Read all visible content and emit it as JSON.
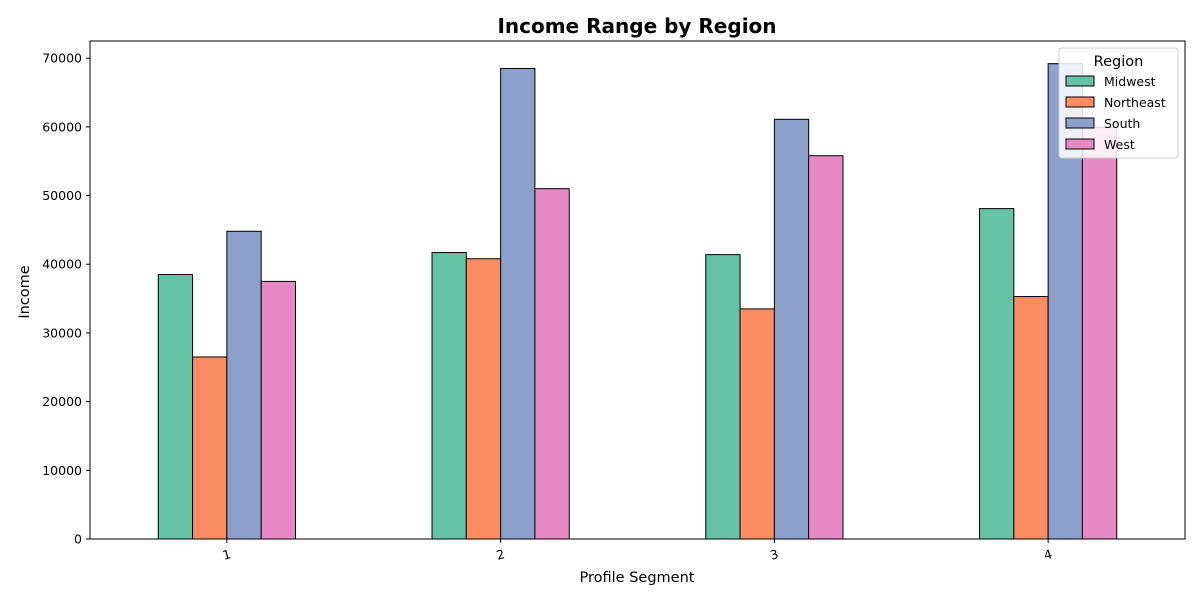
{
  "chart_data": {
    "type": "bar",
    "title": "Income Range by Region",
    "xlabel": "Profile Segment",
    "ylabel": "Income",
    "categories": [
      "1",
      "2",
      "3",
      "4"
    ],
    "ylim": [
      0,
      72500
    ],
    "yticks": [
      0,
      10000,
      20000,
      30000,
      40000,
      50000,
      60000,
      70000
    ],
    "grid": false,
    "legend": {
      "title": "Region",
      "placement": "top-right"
    },
    "series": [
      {
        "name": "Midwest",
        "color": "#66c2a5",
        "values": [
          38500,
          41700,
          41400,
          48100
        ]
      },
      {
        "name": "Northeast",
        "color": "#fc8d62",
        "values": [
          26500,
          40800,
          33500,
          35300
        ]
      },
      {
        "name": "South",
        "color": "#8da0cb",
        "values": [
          44800,
          68500,
          61100,
          69200
        ]
      },
      {
        "name": "West",
        "color": "#e78ac3",
        "values": [
          37500,
          51000,
          55800,
          59900
        ]
      }
    ]
  }
}
